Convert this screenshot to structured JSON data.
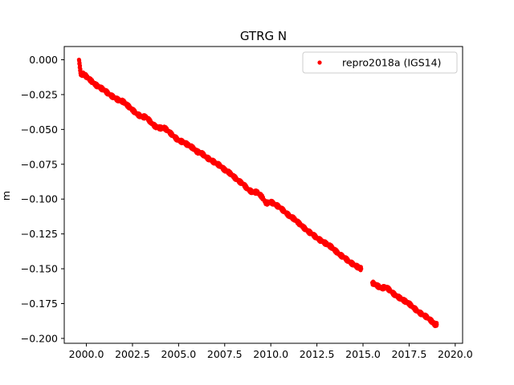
{
  "chart_data": {
    "type": "scatter",
    "title": "GTRG N",
    "xlabel": "",
    "ylabel": "m",
    "xlim": [
      1998.8,
      2020.4
    ],
    "ylim": [
      -0.2035,
      0.0095
    ],
    "xticks": [
      2000.0,
      2002.5,
      2005.0,
      2007.5,
      2010.0,
      2012.5,
      2015.0,
      2017.5,
      2020.0
    ],
    "xtick_labels": [
      "2000.0",
      "2002.5",
      "2005.0",
      "2007.5",
      "2010.0",
      "2012.5",
      "2015.0",
      "2017.5",
      "2020.0"
    ],
    "yticks": [
      0.0,
      -0.025,
      -0.05,
      -0.075,
      -0.1,
      -0.125,
      -0.15,
      -0.175,
      -0.2
    ],
    "ytick_labels": [
      "0.000",
      "−0.025",
      "−0.050",
      "−0.075",
      "−0.100",
      "−0.125",
      "−0.150",
      "−0.175",
      "−0.200"
    ],
    "grid": false,
    "legend_position": "top-right",
    "series": [
      {
        "name": "repro2018a (IGS14)",
        "color": "#ff0000",
        "marker": "circle",
        "x": [
          1999.6,
          1999.7,
          1999.85,
          2000.0,
          2000.25,
          2000.5,
          2000.75,
          2001.0,
          2001.25,
          2001.5,
          2001.75,
          2002.0,
          2002.25,
          2002.5,
          2002.75,
          2003.0,
          2003.25,
          2003.5,
          2003.75,
          2004.0,
          2004.25,
          2004.5,
          2004.75,
          2005.0,
          2005.25,
          2005.5,
          2005.75,
          2006.0,
          2006.25,
          2006.5,
          2006.75,
          2007.0,
          2007.25,
          2007.5,
          2007.75,
          2008.0,
          2008.25,
          2008.5,
          2008.75,
          2009.0,
          2009.25,
          2009.5,
          2009.75,
          2010.0,
          2010.25,
          2010.5,
          2010.75,
          2011.0,
          2011.25,
          2011.5,
          2011.75,
          2012.0,
          2012.25,
          2012.5,
          2012.75,
          2013.0,
          2013.25,
          2013.5,
          2013.75,
          2014.0,
          2014.25,
          2014.5,
          2014.75,
          2014.9,
          2015.5,
          2015.75,
          2016.0,
          2016.25,
          2016.5,
          2016.75,
          2017.0,
          2017.25,
          2017.5,
          2017.75,
          2018.0,
          2018.25,
          2018.5,
          2018.75,
          2018.9,
          2019.0
        ],
        "y": [
          0.0,
          -0.011,
          -0.01,
          -0.012,
          -0.015,
          -0.018,
          -0.02,
          -0.022,
          -0.025,
          -0.027,
          -0.029,
          -0.03,
          -0.033,
          -0.036,
          -0.039,
          -0.041,
          -0.041,
          -0.045,
          -0.048,
          -0.049,
          -0.049,
          -0.052,
          -0.055,
          -0.058,
          -0.059,
          -0.061,
          -0.063,
          -0.066,
          -0.067,
          -0.07,
          -0.072,
          -0.074,
          -0.076,
          -0.079,
          -0.081,
          -0.084,
          -0.087,
          -0.089,
          -0.093,
          -0.095,
          -0.095,
          -0.098,
          -0.103,
          -0.102,
          -0.104,
          -0.106,
          -0.109,
          -0.112,
          -0.114,
          -0.117,
          -0.12,
          -0.123,
          -0.125,
          -0.128,
          -0.13,
          -0.132,
          -0.134,
          -0.137,
          -0.14,
          -0.142,
          -0.145,
          -0.147,
          -0.149,
          -0.15,
          -0.16,
          -0.162,
          -0.164,
          -0.163,
          -0.166,
          -0.169,
          -0.171,
          -0.173,
          -0.175,
          -0.178,
          -0.181,
          -0.183,
          -0.185,
          -0.188,
          -0.19,
          -0.19
        ]
      }
    ]
  }
}
